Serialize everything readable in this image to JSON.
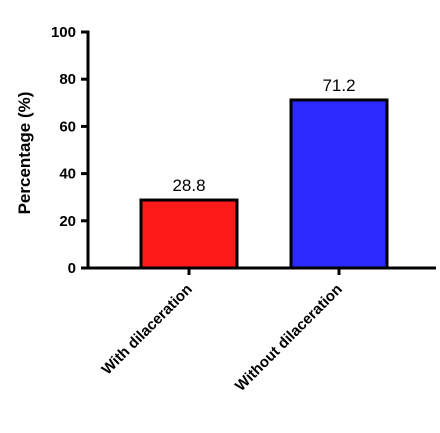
{
  "chart_data": {
    "type": "bar",
    "categories": [
      "With dilaceration",
      "Without dilaceration"
    ],
    "values": [
      28.8,
      71.2
    ],
    "data_labels": [
      "28.8",
      "71.2"
    ],
    "colors": [
      "#ff1a1a",
      "#2a2aff"
    ],
    "ylabel": "Percentage (%)",
    "xlabel": "",
    "ylim": [
      0,
      100
    ],
    "yticks": [
      0,
      20,
      40,
      60,
      80,
      100
    ],
    "ytick_labels": [
      "0",
      "20",
      "40",
      "60",
      "80",
      "100"
    ],
    "grid": false
  }
}
